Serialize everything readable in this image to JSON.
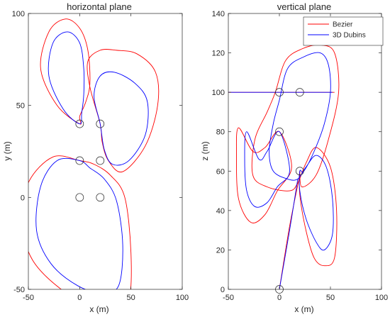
{
  "chart_data": [
    {
      "type": "line",
      "title": "horizontal plane",
      "xlabel": "x (m)",
      "ylabel": "y (m)",
      "xlim": [
        -50,
        100
      ],
      "ylim": [
        -50,
        100
      ],
      "xticks": [
        -50,
        0,
        50,
        100
      ],
      "yticks": [
        -50,
        0,
        50,
        100
      ],
      "grid": false,
      "waypoints": [
        [
          0,
          0
        ],
        [
          20,
          0
        ],
        [
          20,
          20
        ],
        [
          0,
          20
        ],
        [
          0,
          40
        ],
        [
          20,
          40
        ]
      ],
      "series": [
        {
          "name": "Bezier",
          "color": "#ff0000",
          "loops": [
            [
              [
                0,
                40
              ],
              [
                -22,
                50
              ],
              [
                -38,
                70
              ],
              [
                -30,
                90
              ],
              [
                -14,
                97
              ],
              [
                0,
                92
              ],
              [
                8,
                80
              ],
              [
                10,
                62
              ],
              [
                6,
                52
              ],
              [
                0,
                44
              ]
            ],
            [
              [
                20,
                40
              ],
              [
                10,
                60
              ],
              [
                8,
                74
              ],
              [
                20,
                80
              ],
              [
                36,
                80
              ],
              [
                56,
                78
              ],
              [
                74,
                68
              ],
              [
                76,
                50
              ],
              [
                64,
                28
              ],
              [
                42,
                14
              ],
              [
                28,
                20
              ],
              [
                22,
                30
              ]
            ],
            [
              [
                0,
                20
              ],
              [
                -26,
                22
              ],
              [
                -50,
                8
              ],
              [
                -56,
                -14
              ],
              [
                -46,
                -34
              ],
              [
                -18,
                -50
              ],
              [
                10,
                -58
              ],
              [
                34,
                -62
              ],
              [
                48,
                -56
              ],
              [
                50,
                -30
              ],
              [
                44,
                0
              ],
              [
                30,
                12
              ],
              [
                14,
                18
              ]
            ]
          ]
        },
        {
          "name": "3D Dubins",
          "color": "#0000ff",
          "loops": [
            [
              [
                0,
                40
              ],
              [
                -16,
                48
              ],
              [
                -30,
                66
              ],
              [
                -26,
                84
              ],
              [
                -12,
                90
              ],
              [
                0,
                84
              ],
              [
                4,
                70
              ],
              [
                4,
                56
              ],
              [
                2,
                46
              ]
            ],
            [
              [
                20,
                40
              ],
              [
                14,
                55
              ],
              [
                20,
                66
              ],
              [
                34,
                68
              ],
              [
                54,
                62
              ],
              [
                66,
                52
              ],
              [
                64,
                34
              ],
              [
                48,
                20
              ],
              [
                32,
                18
              ],
              [
                24,
                26
              ]
            ],
            [
              [
                0,
                20
              ],
              [
                -22,
                20
              ],
              [
                -38,
                6
              ],
              [
                -42,
                -18
              ],
              [
                -28,
                -36
              ],
              [
                -2,
                -48
              ],
              [
                22,
                -52
              ],
              [
                38,
                -48
              ],
              [
                42,
                -26
              ],
              [
                36,
                -2
              ],
              [
                24,
                10
              ],
              [
                10,
                16
              ]
            ]
          ]
        }
      ]
    },
    {
      "type": "line",
      "title": "vertical plane",
      "xlabel": "x (m)",
      "ylabel": "z (m)",
      "xlim": [
        -50,
        100
      ],
      "ylim": [
        0,
        140
      ],
      "xticks": [
        -50,
        0,
        50,
        100
      ],
      "yticks": [
        0,
        20,
        40,
        60,
        80,
        100,
        120,
        140
      ],
      "grid": false,
      "legend": "top-right",
      "waypoints": [
        [
          0,
          0
        ],
        [
          20,
          60
        ],
        [
          0,
          80
        ],
        [
          0,
          100
        ],
        [
          20,
          100
        ]
      ],
      "series": [
        {
          "name": "Bezier",
          "color": "#ff0000",
          "loops": [
            [
              [
                0,
                0
              ],
              [
                10,
                32
              ],
              [
                20,
                58
              ]
            ],
            [
              [
                0,
                80
              ],
              [
                -14,
                72
              ],
              [
                -26,
                70
              ],
              [
                -40,
                82
              ],
              [
                -42,
                68
              ],
              [
                -40,
                46
              ],
              [
                -28,
                34
              ],
              [
                -14,
                38
              ],
              [
                -2,
                50
              ],
              [
                12,
                62
              ]
            ],
            [
              [
                20,
                60
              ],
              [
                20,
                48
              ],
              [
                26,
                30
              ],
              [
                34,
                16
              ],
              [
                44,
                12
              ],
              [
                54,
                16
              ],
              [
                56,
                40
              ],
              [
                50,
                62
              ],
              [
                36,
                72
              ],
              [
                26,
                64
              ],
              [
                18,
                54
              ],
              [
                10,
                50
              ],
              [
                -12,
                52
              ],
              [
                -26,
                58
              ],
              [
                -24,
                76
              ],
              [
                -12,
                90
              ],
              [
                -4,
                100
              ],
              [
                6,
                116
              ],
              [
                22,
                122
              ],
              [
                40,
                124
              ],
              [
                54,
                120
              ],
              [
                58,
                100
              ],
              [
                48,
                76
              ],
              [
                36,
                58
              ],
              [
                22,
                52
              ]
            ],
            [
              [
                -50,
                100
              ],
              [
                54,
                100
              ]
            ]
          ]
        },
        {
          "name": "3D Dubins",
          "color": "#0000ff",
          "loops": [
            [
              [
                0,
                0
              ],
              [
                10,
                30
              ],
              [
                18,
                56
              ]
            ],
            [
              [
                0,
                80
              ],
              [
                -12,
                70
              ],
              [
                -20,
                66
              ],
              [
                -32,
                80
              ],
              [
                -34,
                66
              ],
              [
                -32,
                50
              ],
              [
                -24,
                42
              ],
              [
                -12,
                44
              ],
              [
                -2,
                52
              ],
              [
                10,
                60
              ]
            ],
            [
              [
                20,
                60
              ],
              [
                20,
                50
              ],
              [
                26,
                36
              ],
              [
                36,
                24
              ],
              [
                44,
                20
              ],
              [
                52,
                28
              ],
              [
                52,
                46
              ],
              [
                46,
                62
              ],
              [
                36,
                68
              ],
              [
                26,
                62
              ],
              [
                18,
                56
              ],
              [
                8,
                56
              ],
              [
                -6,
                60
              ],
              [
                -10,
                70
              ],
              [
                -6,
                84
              ],
              [
                0,
                96
              ],
              [
                8,
                112
              ],
              [
                24,
                118
              ],
              [
                40,
                120
              ],
              [
                48,
                114
              ],
              [
                50,
                100
              ],
              [
                44,
                84
              ],
              [
                34,
                70
              ],
              [
                24,
                60
              ]
            ],
            [
              [
                -50,
                100
              ],
              [
                52,
                100
              ]
            ]
          ]
        }
      ]
    }
  ]
}
